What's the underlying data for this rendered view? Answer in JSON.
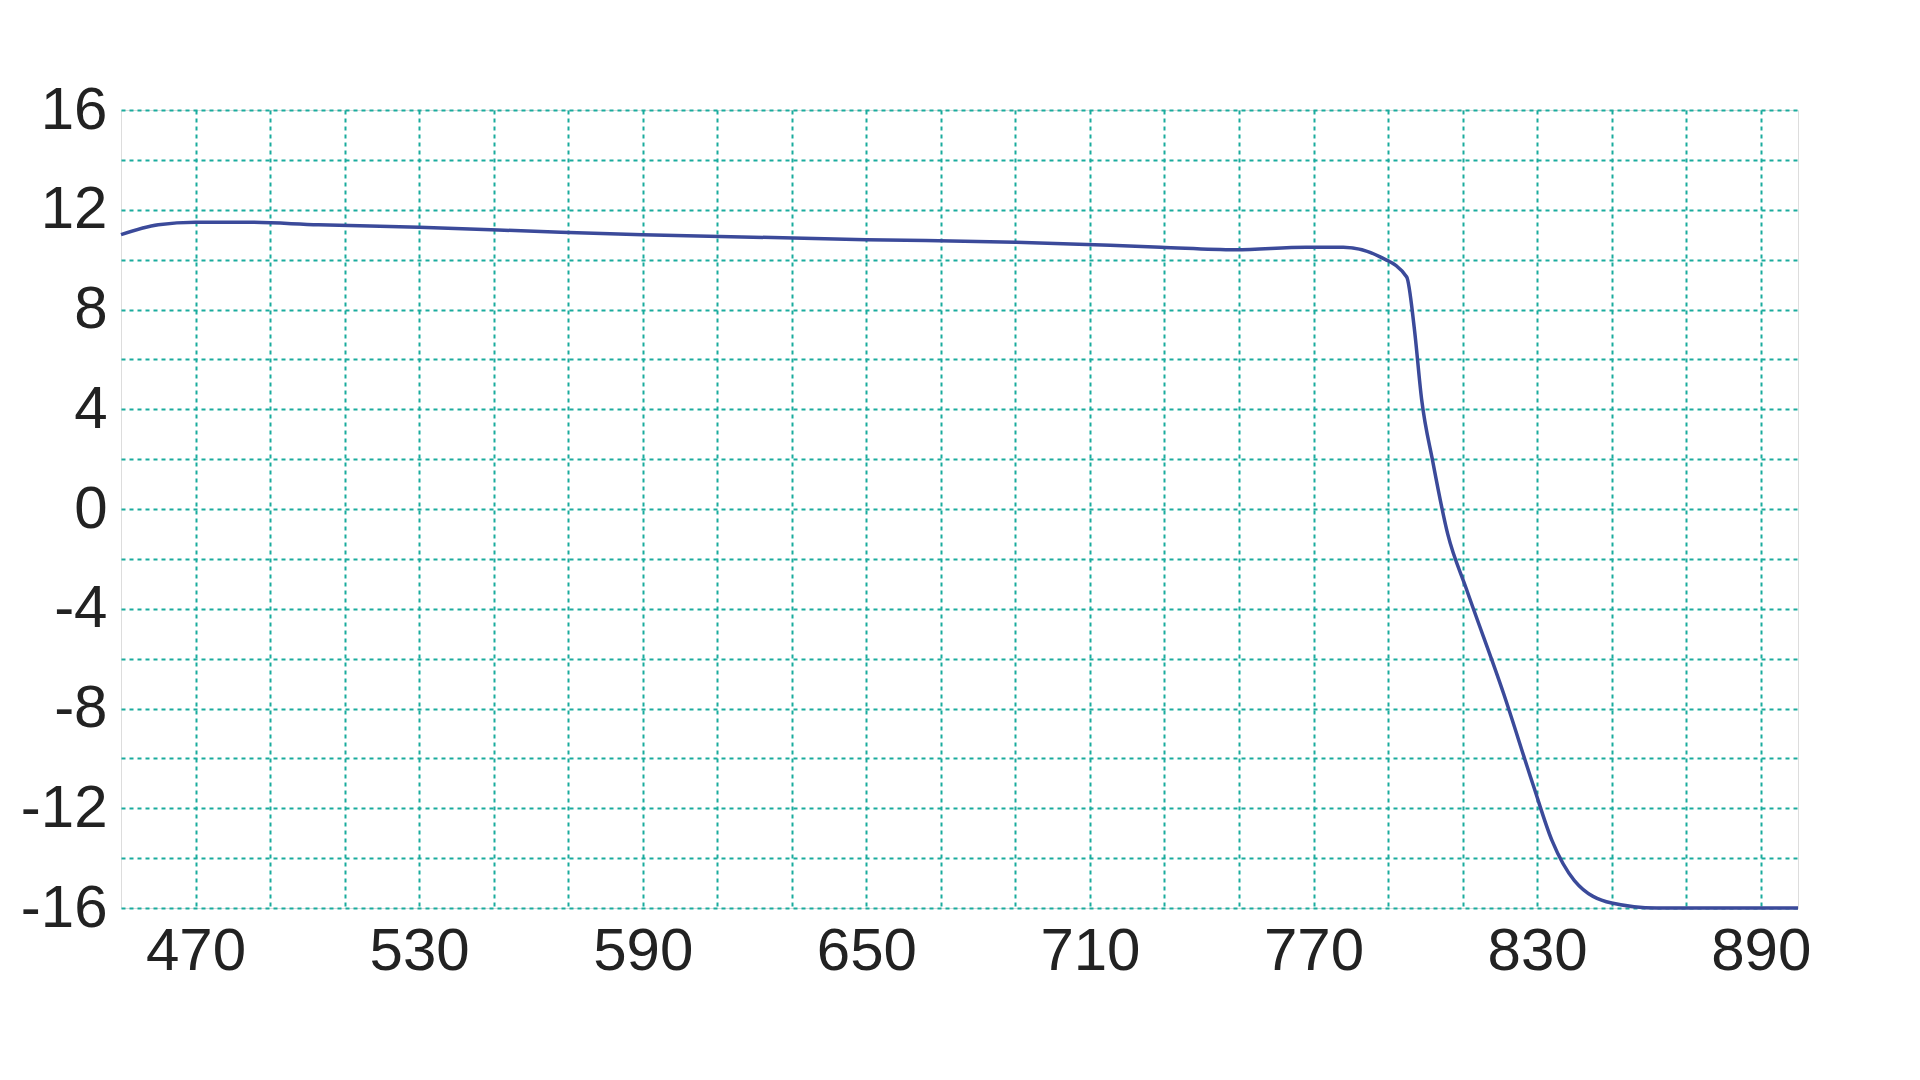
{
  "chart_data": {
    "type": "line",
    "x": [
      450,
      460,
      470,
      483,
      503,
      530,
      568,
      590,
      650,
      690,
      729,
      749,
      768,
      778,
      788,
      795,
      797,
      799,
      802,
      806,
      811,
      821,
      829,
      834,
      840,
      850,
      862,
      877,
      900
    ],
    "series": [
      {
        "color": "#3b4a9a",
        "values": [
          11.0,
          11.4,
          11.5,
          11.5,
          11.4,
          11.3,
          11.1,
          11.0,
          10.8,
          10.7,
          10.5,
          10.4,
          10.5,
          10.5,
          10.1,
          9.3,
          7.3,
          4.4,
          1.9,
          -1.0,
          -3.2,
          -7.4,
          -11.1,
          -13.3,
          -14.9,
          -15.8,
          -16.0,
          -16.0,
          -16.0
        ]
      }
    ],
    "xlim": [
      450,
      900
    ],
    "xticks": [
      470,
      {
        "value": 490,
        "label": null
      },
      {
        "value": 510,
        "label": null
      },
      530,
      {
        "value": 550,
        "label": null
      },
      {
        "value": 570,
        "label": null
      },
      590,
      {
        "value": 610,
        "label": null
      },
      {
        "value": 630,
        "label": null
      },
      650,
      {
        "value": 670,
        "label": null
      },
      {
        "value": 690,
        "label": null
      },
      710,
      {
        "value": 730,
        "label": null
      },
      {
        "value": 750,
        "label": null
      },
      770,
      {
        "value": 790,
        "label": null
      },
      {
        "value": 810,
        "label": null
      },
      830,
      {
        "value": 850,
        "label": null
      },
      {
        "value": 870,
        "label": null
      },
      890
    ],
    "ylim": [
      -16,
      16
    ],
    "yticks": [
      -16,
      {
        "value": -14,
        "label": null
      },
      -12,
      {
        "value": -10,
        "label": null
      },
      -8,
      {
        "value": -6,
        "label": null
      },
      -4,
      {
        "value": -2,
        "label": null
      },
      0,
      {
        "value": 2,
        "label": null
      },
      4,
      {
        "value": 6,
        "label": null
      },
      8,
      {
        "value": 10,
        "label": null
      },
      12,
      {
        "value": 14,
        "label": null
      },
      16
    ],
    "grid": true,
    "line_style": "solid",
    "marker": "none"
  }
}
